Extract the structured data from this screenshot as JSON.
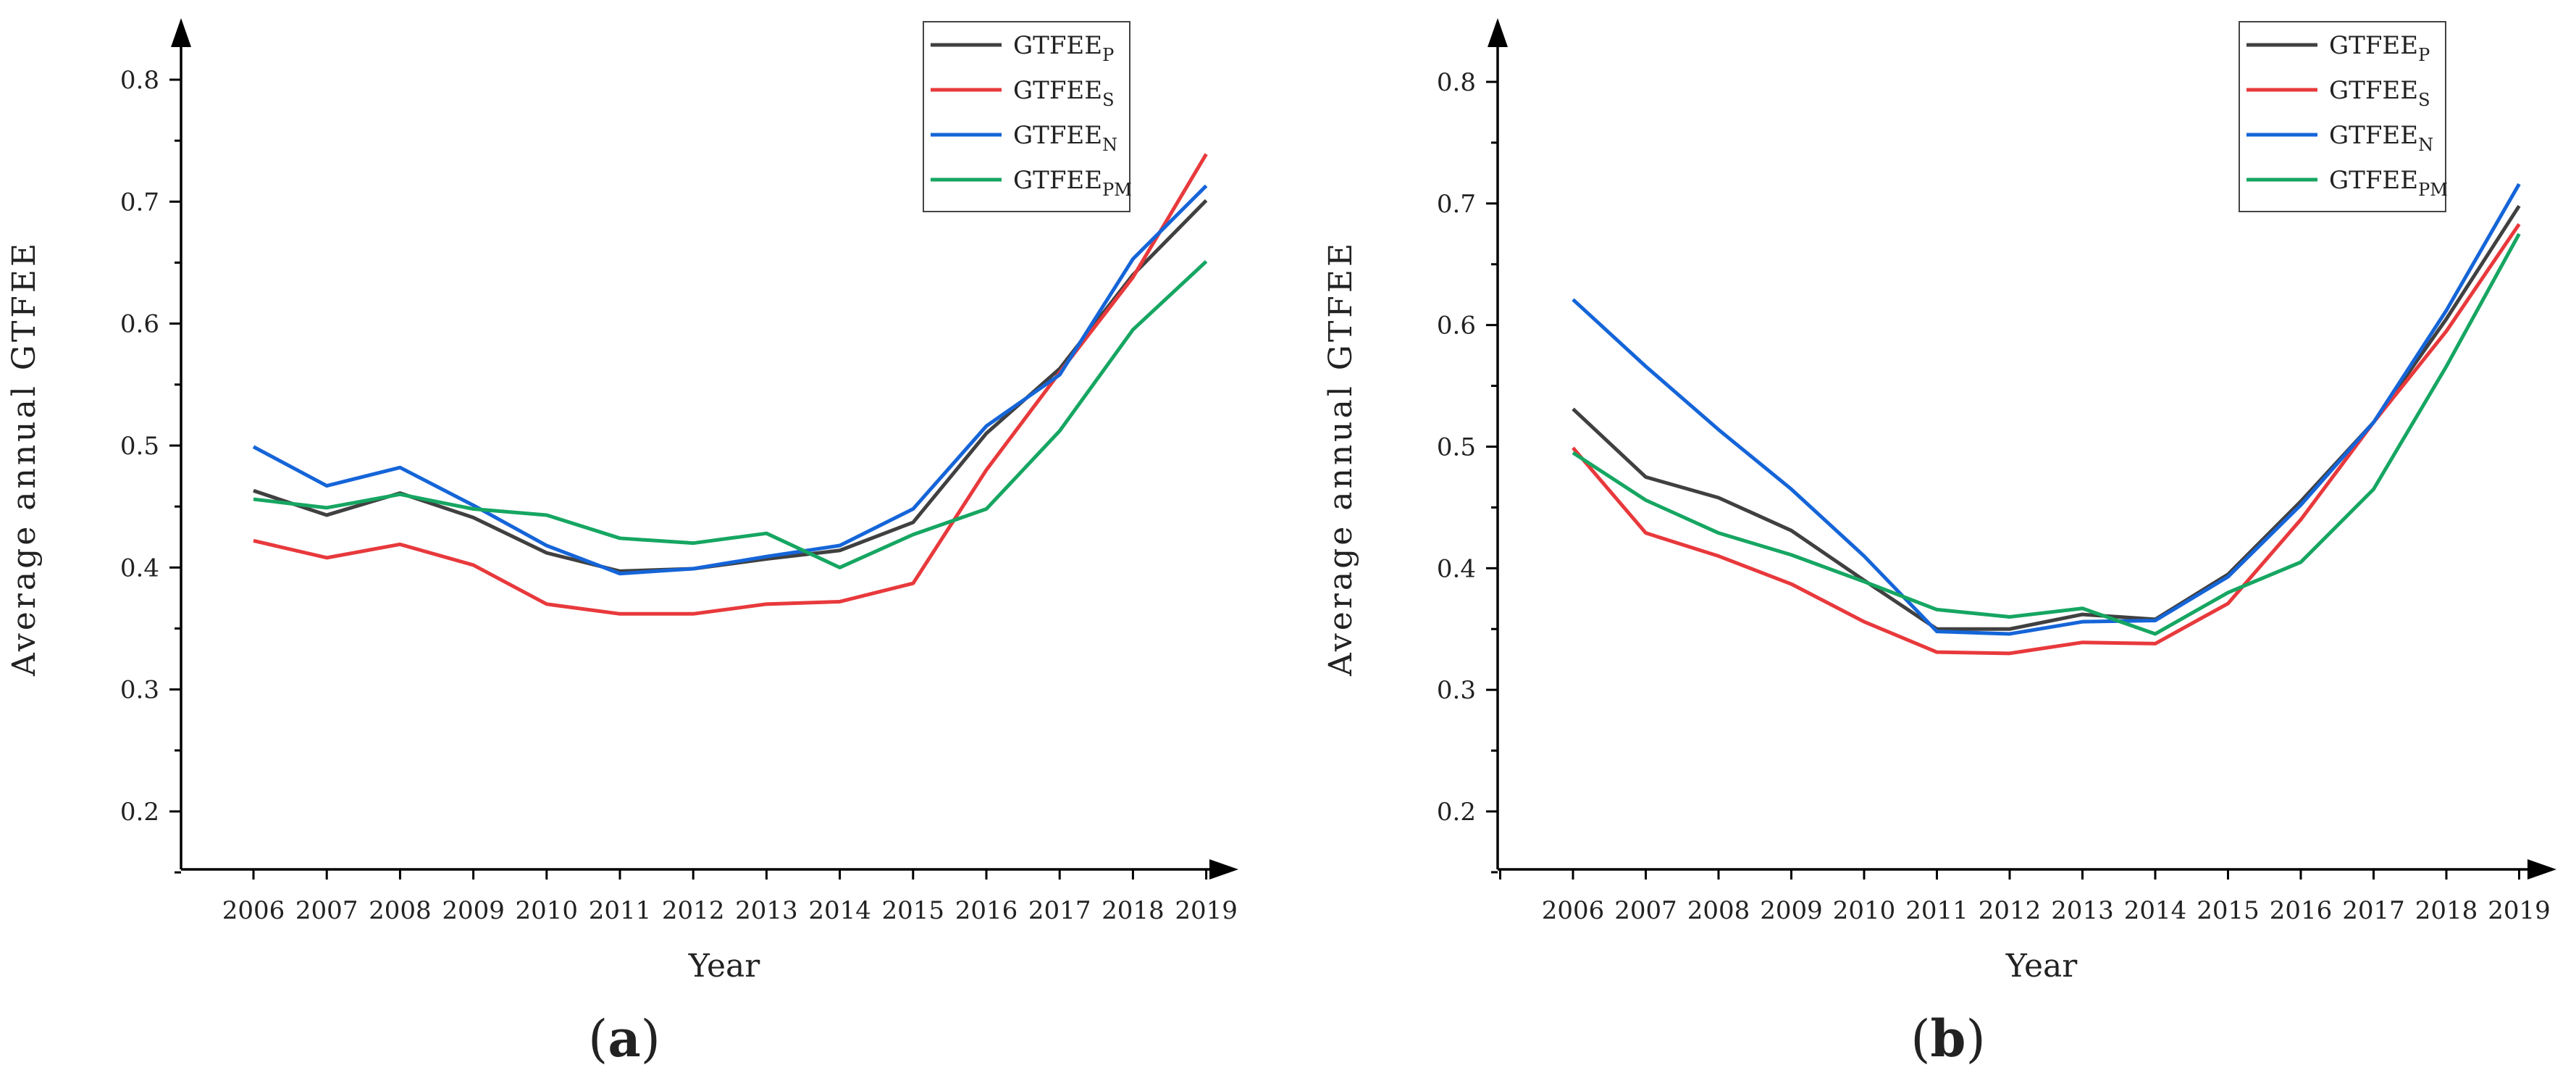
{
  "chart_data": [
    {
      "type": "line",
      "panel_label": "a",
      "title": "",
      "xlabel": "Year",
      "ylabel": "Average annual GTFEE",
      "ylim": [
        0.15,
        0.85
      ],
      "yticks": [
        "0.2",
        "0.3",
        "0.4",
        "0.5",
        "0.6",
        "0.7",
        "0.8"
      ],
      "grid": false,
      "legend_position": "top-right",
      "x": [
        "2006",
        "2007",
        "2008",
        "2009",
        "2010",
        "2011",
        "2012",
        "2013",
        "2014",
        "2015",
        "2016",
        "2017",
        "2018",
        "2019"
      ],
      "series": [
        {
          "name": "GTFEE",
          "subscript": "P",
          "color": "#404040",
          "values": [
            0.463,
            0.443,
            0.461,
            0.441,
            0.412,
            0.397,
            0.399,
            0.407,
            0.414,
            0.437,
            0.51,
            0.563,
            0.64,
            0.701
          ]
        },
        {
          "name": "GTFEE",
          "subscript": "S",
          "color": "#e8393c",
          "values": [
            0.422,
            0.408,
            0.419,
            0.402,
            0.37,
            0.362,
            0.362,
            0.37,
            0.372,
            0.387,
            0.48,
            0.56,
            0.638,
            0.739
          ]
        },
        {
          "name": "GTFEE",
          "subscript": "N",
          "color": "#1565d8",
          "values": [
            0.499,
            0.467,
            0.482,
            0.451,
            0.418,
            0.395,
            0.399,
            0.409,
            0.418,
            0.448,
            0.516,
            0.558,
            0.653,
            0.713
          ]
        },
        {
          "name": "GTFEE",
          "subscript": "PM",
          "color": "#16a662",
          "values": [
            0.456,
            0.449,
            0.46,
            0.448,
            0.443,
            0.424,
            0.42,
            0.428,
            0.4,
            0.427,
            0.448,
            0.512,
            0.595,
            0.651
          ]
        }
      ]
    },
    {
      "type": "line",
      "panel_label": "b",
      "title": "",
      "xlabel": "Year",
      "ylabel": "Average annual GTFEE",
      "ylim": [
        0.15,
        0.85
      ],
      "yticks": [
        "0.2",
        "0.3",
        "0.4",
        "0.5",
        "0.6",
        "0.7",
        "0.8"
      ],
      "grid": false,
      "legend_position": "top-right",
      "x": [
        "2006",
        "2007",
        "2008",
        "2009",
        "2010",
        "2011",
        "2012",
        "2013",
        "2014",
        "2015",
        "2016",
        "2017",
        "2018",
        "2019"
      ],
      "series": [
        {
          "name": "GTFEE",
          "subscript": "P",
          "color": "#404040",
          "values": [
            0.531,
            0.475,
            0.458,
            0.431,
            0.39,
            0.35,
            0.35,
            0.362,
            0.358,
            0.395,
            0.455,
            0.52,
            0.605,
            0.698
          ]
        },
        {
          "name": "GTFEE",
          "subscript": "S",
          "color": "#e8393c",
          "values": [
            0.499,
            0.429,
            0.41,
            0.387,
            0.356,
            0.331,
            0.33,
            0.339,
            0.338,
            0.371,
            0.44,
            0.52,
            0.595,
            0.683
          ]
        },
        {
          "name": "GTFEE",
          "subscript": "N",
          "color": "#1565d8",
          "values": [
            0.621,
            0.566,
            0.514,
            0.465,
            0.41,
            0.348,
            0.346,
            0.356,
            0.357,
            0.393,
            0.452,
            0.52,
            0.612,
            0.716
          ]
        },
        {
          "name": "GTFEE",
          "subscript": "PM",
          "color": "#16a662",
          "values": [
            0.495,
            0.456,
            0.429,
            0.411,
            0.389,
            0.366,
            0.36,
            0.367,
            0.346,
            0.38,
            0.405,
            0.465,
            0.566,
            0.675
          ]
        }
      ]
    }
  ]
}
